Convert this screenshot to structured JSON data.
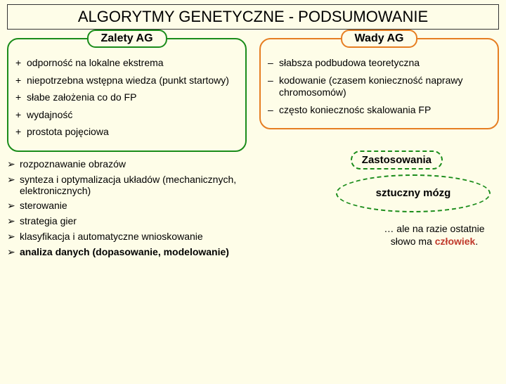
{
  "title": "ALGORYTMY GENETYCZNE - PODSUMOWANIE",
  "pros": {
    "heading": "Zalety AG",
    "items": [
      "odporność na lokalne ekstrema",
      "niepotrzebna wstępna wiedza (punkt startowy)",
      "słabe założenia co do FP",
      "wydajność",
      "prostota pojęciowa"
    ]
  },
  "cons": {
    "heading": "Wady AG",
    "items": [
      "słabsza podbudowa teoretyczna",
      "kodowanie (czasem konieczność naprawy chromosomów)",
      "często koniecznośc skalowania FP"
    ]
  },
  "apps": {
    "heading": "Zastosowania",
    "items": [
      "rozpoznawanie obrazów",
      "synteza i optymalizacja układów (mechanicznych, elektronicznych)",
      "sterowanie",
      "strategia gier",
      "klasyfikacja i automatyczne wnioskowanie",
      "analiza danych (dopasowanie, modelowanie)"
    ],
    "bold_index": 5
  },
  "brain": "sztuczny mózg",
  "note_pre": "… ale na razie ostatnie słowo ma ",
  "note_red": "człowiek",
  "note_post": ".",
  "colors": {
    "green": "#1a8c1a",
    "orange": "#e67e22",
    "red": "#c0392b",
    "bg": "#fefde8"
  }
}
